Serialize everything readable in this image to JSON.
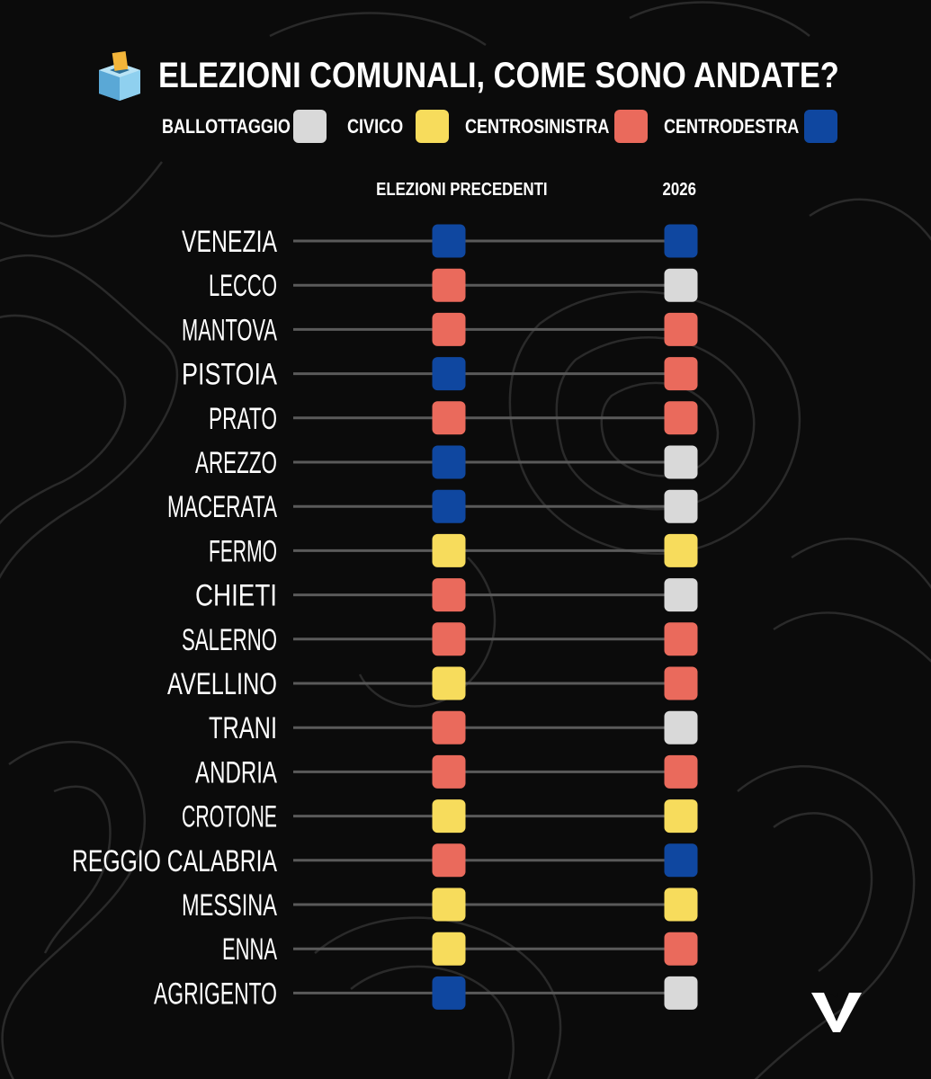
{
  "header": {
    "title": "ELEZIONI COMUNALI, COME SONO ANDATE?",
    "icon": "ballot-box-icon"
  },
  "legend": [
    {
      "label": "BALLOTTAGGIO",
      "color": "#d9d9d9"
    },
    {
      "label": "CIVICO",
      "color": "#f7dc5c"
    },
    {
      "label": "CENTROSINISTRA",
      "color": "#ea6a5c"
    },
    {
      "label": "CENTRODESTRA",
      "color": "#0f47a0"
    }
  ],
  "colors": {
    "background": "#0b0b0b",
    "connector": "#5a5a5a",
    "contour": "#2a2a2a"
  },
  "chart_data": {
    "type": "table",
    "title": "ELEZIONI COMUNALI, COME SONO ANDATE?",
    "columns": [
      "ELEZIONI PRECEDENTI",
      "2026"
    ],
    "categories": [
      "BALLOTTAGGIO",
      "CIVICO",
      "CENTROSINISTRA",
      "CENTRODESTRA"
    ],
    "rows": [
      {
        "city": "VENEZIA",
        "before": "CENTRODESTRA",
        "after": "CENTRODESTRA"
      },
      {
        "city": "LECCO",
        "before": "CENTROSINISTRA",
        "after": "BALLOTTAGGIO"
      },
      {
        "city": "MANTOVA",
        "before": "CENTROSINISTRA",
        "after": "CENTROSINISTRA"
      },
      {
        "city": "PISTOIA",
        "before": "CENTRODESTRA",
        "after": "CENTROSINISTRA"
      },
      {
        "city": "PRATO",
        "before": "CENTROSINISTRA",
        "after": "CENTROSINISTRA"
      },
      {
        "city": "AREZZO",
        "before": "CENTRODESTRA",
        "after": "BALLOTTAGGIO"
      },
      {
        "city": "MACERATA",
        "before": "CENTRODESTRA",
        "after": "BALLOTTAGGIO"
      },
      {
        "city": "FERMO",
        "before": "CIVICO",
        "after": "CIVICO"
      },
      {
        "city": "CHIETI",
        "before": "CENTROSINISTRA",
        "after": "BALLOTTAGGIO"
      },
      {
        "city": "SALERNO",
        "before": "CENTROSINISTRA",
        "after": "CENTROSINISTRA"
      },
      {
        "city": "AVELLINO",
        "before": "CIVICO",
        "after": "CENTROSINISTRA"
      },
      {
        "city": "TRANI",
        "before": "CENTROSINISTRA",
        "after": "BALLOTTAGGIO"
      },
      {
        "city": "ANDRIA",
        "before": "CENTROSINISTRA",
        "after": "CENTROSINISTRA"
      },
      {
        "city": "CROTONE",
        "before": "CIVICO",
        "after": "CIVICO"
      },
      {
        "city": "REGGIO CALABRIA",
        "before": "CENTROSINISTRA",
        "after": "CENTRODESTRA"
      },
      {
        "city": "MESSINA",
        "before": "CIVICO",
        "after": "CIVICO"
      },
      {
        "city": "ENNA",
        "before": "CIVICO",
        "after": "CENTROSINISTRA"
      },
      {
        "city": "AGRIGENTO",
        "before": "CENTRODESTRA",
        "after": "BALLOTTAGGIO"
      }
    ]
  },
  "logo": {
    "icon": "v-logo-icon"
  }
}
